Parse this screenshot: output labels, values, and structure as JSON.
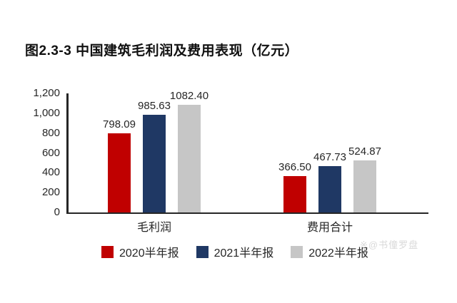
{
  "figure": {
    "title": "图2.3-3 中国建筑毛利润及费用表现（亿元）",
    "watermark": {
      "icon": "※",
      "text": "@书僮罗盘"
    }
  },
  "chart_data": {
    "type": "bar",
    "title": "图2.3-3 中国建筑毛利润及费用表现（亿元）",
    "unit": "亿元",
    "categories": [
      "毛利润",
      "费用合计"
    ],
    "series": [
      {
        "name": "2020半年报",
        "color": "#c00000",
        "values": [
          798.09,
          366.5
        ]
      },
      {
        "name": "2021半年报",
        "color": "#1f3864",
        "values": [
          985.63,
          467.73
        ]
      },
      {
        "name": "2022半年报",
        "color": "#c6c6c6",
        "values": [
          1082.4,
          524.87
        ]
      }
    ],
    "data_labels": [
      [
        "798.09",
        "366.50"
      ],
      [
        "985.63",
        "467.73"
      ],
      [
        "1082.40",
        "524.87"
      ]
    ],
    "ylim": [
      0,
      1200
    ],
    "ytick_step": 200,
    "ytick_labels": [
      "0",
      "200",
      "400",
      "600",
      "800",
      "1,000",
      "1,200"
    ],
    "grid": false,
    "legend_position": "bottom",
    "text_color": "#262626",
    "axis_color": "#262626"
  }
}
